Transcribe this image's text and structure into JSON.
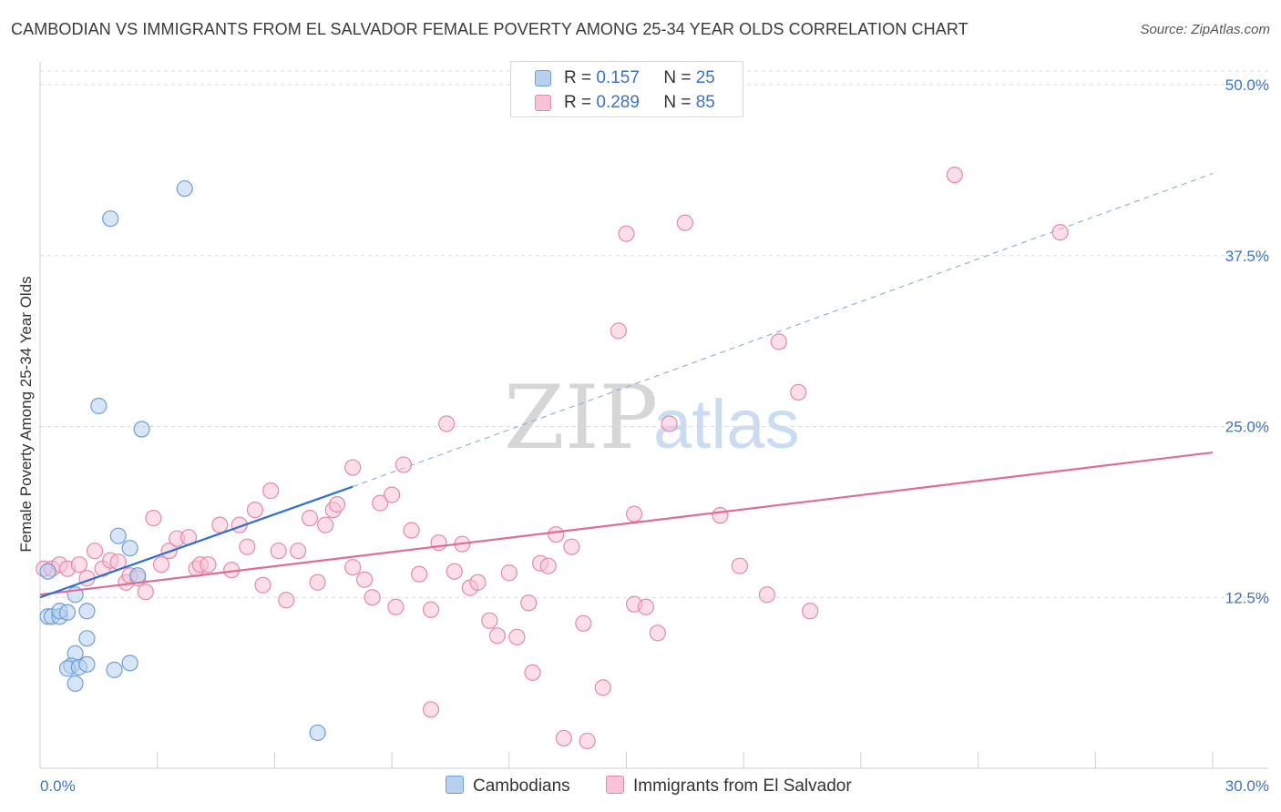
{
  "header": {
    "title": "CAMBODIAN VS IMMIGRANTS FROM EL SALVADOR FEMALE POVERTY AMONG 25-34 YEAR OLDS CORRELATION CHART",
    "source": "Source: ZipAtlas.com"
  },
  "watermark": {
    "zip": "ZIP",
    "atlas": "atlas"
  },
  "legend_top": {
    "rows": [
      {
        "r_label": "R = ",
        "r_value": "0.157",
        "n_label": "N = ",
        "n_value": "25"
      },
      {
        "r_label": "R = ",
        "r_value": "0.289",
        "n_label": "N = ",
        "n_value": "85"
      }
    ]
  },
  "legend_bottom": {
    "items": [
      {
        "label": "Cambodians"
      },
      {
        "label": "Immigrants from El Salvador"
      }
    ]
  },
  "colors": {
    "blue_fill": "#b7d0f0",
    "blue_stroke": "#6f9fd8",
    "blue_line": "#2f6fcf",
    "pink_fill": "#f8c3d3",
    "pink_stroke": "#e58aa8",
    "pink_line": "#e06b94",
    "tick_text": "#3d73c4"
  },
  "chart_data": {
    "type": "scatter",
    "title": "CAMBODIAN VS IMMIGRANTS FROM EL SALVADOR FEMALE POVERTY AMONG 25-34 YEAR OLDS CORRELATION CHART",
    "xlabel": "",
    "ylabel": "Female Poverty Among 25-34 Year Olds",
    "xlim": [
      0,
      30
    ],
    "ylim": [
      0,
      51
    ],
    "x_tick_labels": [
      {
        "value": 0,
        "label": "0.0%"
      },
      {
        "value": 30,
        "label": "30.0%"
      }
    ],
    "y_tick_labels": [
      {
        "value": 12.5,
        "label": "12.5%"
      },
      {
        "value": 25,
        "label": "25.0%"
      },
      {
        "value": 37.5,
        "label": "37.5%"
      },
      {
        "value": 50,
        "label": "50.0%"
      }
    ],
    "grid": "horizontal dashed",
    "legend_placement": "top-center",
    "series": [
      {
        "name": "Cambodians",
        "points": [
          [
            0.2,
            14.4
          ],
          [
            0.2,
            11.1
          ],
          [
            0.3,
            11.1
          ],
          [
            0.5,
            11.1
          ],
          [
            0.5,
            11.5
          ],
          [
            0.7,
            11.4
          ],
          [
            0.9,
            12.7
          ],
          [
            0.9,
            8.4
          ],
          [
            0.8,
            7.5
          ],
          [
            0.7,
            7.3
          ],
          [
            0.9,
            6.2
          ],
          [
            1.0,
            7.4
          ],
          [
            1.2,
            7.6
          ],
          [
            1.2,
            11.5
          ],
          [
            1.2,
            9.5
          ],
          [
            1.5,
            26.5
          ],
          [
            1.8,
            40.2
          ],
          [
            1.9,
            7.2
          ],
          [
            2.0,
            17.0
          ],
          [
            2.3,
            16.1
          ],
          [
            2.3,
            7.7
          ],
          [
            2.5,
            14.1
          ],
          [
            2.6,
            24.8
          ],
          [
            3.7,
            42.4
          ],
          [
            7.1,
            2.6
          ]
        ],
        "trend": {
          "x": [
            0,
            8
          ],
          "y": [
            12.5,
            20.6
          ],
          "dashed_extension_to": [
            30,
            43.5
          ]
        }
      },
      {
        "name": "Immigrants from El Salvador",
        "points": [
          [
            0.1,
            14.6
          ],
          [
            0.3,
            14.6
          ],
          [
            0.5,
            14.9
          ],
          [
            0.7,
            14.6
          ],
          [
            1.0,
            14.9
          ],
          [
            1.2,
            13.9
          ],
          [
            1.4,
            15.9
          ],
          [
            1.6,
            14.6
          ],
          [
            1.8,
            15.2
          ],
          [
            2.0,
            15.1
          ],
          [
            2.2,
            13.6
          ],
          [
            2.3,
            14.1
          ],
          [
            2.5,
            13.9
          ],
          [
            2.7,
            12.9
          ],
          [
            2.9,
            18.3
          ],
          [
            3.1,
            14.9
          ],
          [
            3.3,
            15.9
          ],
          [
            3.5,
            16.8
          ],
          [
            3.8,
            16.9
          ],
          [
            4.0,
            14.6
          ],
          [
            4.1,
            14.9
          ],
          [
            4.3,
            14.9
          ],
          [
            4.6,
            17.8
          ],
          [
            4.9,
            14.5
          ],
          [
            5.1,
            17.8
          ],
          [
            5.3,
            16.2
          ],
          [
            5.5,
            18.9
          ],
          [
            5.7,
            13.4
          ],
          [
            5.9,
            20.3
          ],
          [
            6.1,
            15.9
          ],
          [
            6.3,
            12.3
          ],
          [
            6.6,
            15.9
          ],
          [
            6.9,
            18.3
          ],
          [
            7.1,
            13.6
          ],
          [
            7.3,
            17.8
          ],
          [
            7.5,
            18.9
          ],
          [
            7.6,
            19.3
          ],
          [
            8.0,
            22.0
          ],
          [
            8.0,
            14.7
          ],
          [
            8.3,
            13.8
          ],
          [
            8.5,
            12.5
          ],
          [
            8.7,
            19.4
          ],
          [
            9.0,
            20.0
          ],
          [
            9.1,
            11.8
          ],
          [
            9.3,
            22.2
          ],
          [
            9.5,
            17.4
          ],
          [
            9.7,
            14.2
          ],
          [
            10.0,
            4.3
          ],
          [
            10.0,
            11.6
          ],
          [
            10.2,
            16.5
          ],
          [
            10.4,
            25.2
          ],
          [
            10.6,
            14.4
          ],
          [
            10.8,
            16.4
          ],
          [
            11.0,
            13.2
          ],
          [
            11.2,
            13.6
          ],
          [
            11.5,
            10.8
          ],
          [
            11.7,
            9.7
          ],
          [
            12.0,
            14.3
          ],
          [
            12.2,
            9.6
          ],
          [
            12.5,
            12.1
          ],
          [
            12.6,
            7.0
          ],
          [
            12.8,
            15.0
          ],
          [
            13.0,
            14.8
          ],
          [
            13.2,
            17.1
          ],
          [
            13.4,
            2.2
          ],
          [
            13.6,
            16.2
          ],
          [
            13.9,
            10.6
          ],
          [
            14.0,
            2.0
          ],
          [
            14.4,
            5.9
          ],
          [
            14.8,
            32.0
          ],
          [
            15.0,
            39.1
          ],
          [
            15.2,
            12.0
          ],
          [
            15.2,
            18.6
          ],
          [
            15.5,
            11.8
          ],
          [
            15.8,
            9.9
          ],
          [
            16.1,
            25.2
          ],
          [
            16.5,
            39.9
          ],
          [
            17.4,
            18.5
          ],
          [
            17.9,
            14.8
          ],
          [
            18.6,
            12.7
          ],
          [
            18.9,
            31.2
          ],
          [
            19.4,
            27.5
          ],
          [
            19.7,
            11.5
          ],
          [
            23.4,
            43.4
          ],
          [
            26.1,
            39.2
          ]
        ],
        "trend": {
          "x": [
            0,
            30
          ],
          "y": [
            12.7,
            23.1
          ]
        }
      }
    ]
  }
}
